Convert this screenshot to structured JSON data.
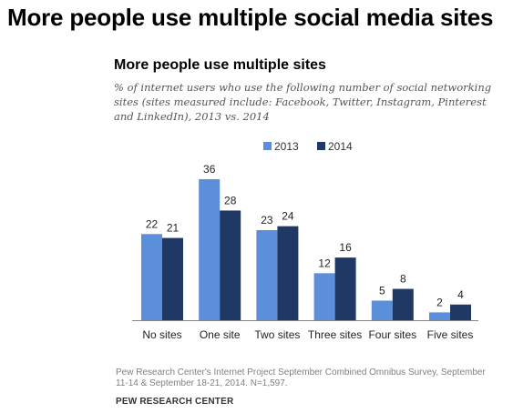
{
  "page_title": "More people use multiple social media sites",
  "chart_data": {
    "type": "bar",
    "title": "More people use multiple sites",
    "subtitle": "% of internet users who use the following number of social networking sites (sites measured include: Facebook, Twitter, Instagram, Pinterest and LinkedIn), 2013 vs. 2014",
    "categories": [
      "No sites",
      "One site",
      "Two sites",
      "Three sites",
      "Four sites",
      "Five sites"
    ],
    "series": [
      {
        "name": "2013",
        "values": [
          22,
          36,
          23,
          12,
          5,
          2
        ],
        "color": "#5B8FD9"
      },
      {
        "name": "2014",
        "values": [
          21,
          28,
          24,
          16,
          8,
          4
        ],
        "color": "#1F3864"
      }
    ],
    "xlabel": "",
    "ylabel": "",
    "ylim": [
      0,
      40
    ],
    "grid": false,
    "legend_position": "top-center",
    "data_labels": true
  },
  "source": "Pew Research Center's Internet Project September Combined Omnibus Survey, September 11-14 & September 18-21, 2014. N=1,597.",
  "footer": "PEW RESEARCH CENTER"
}
